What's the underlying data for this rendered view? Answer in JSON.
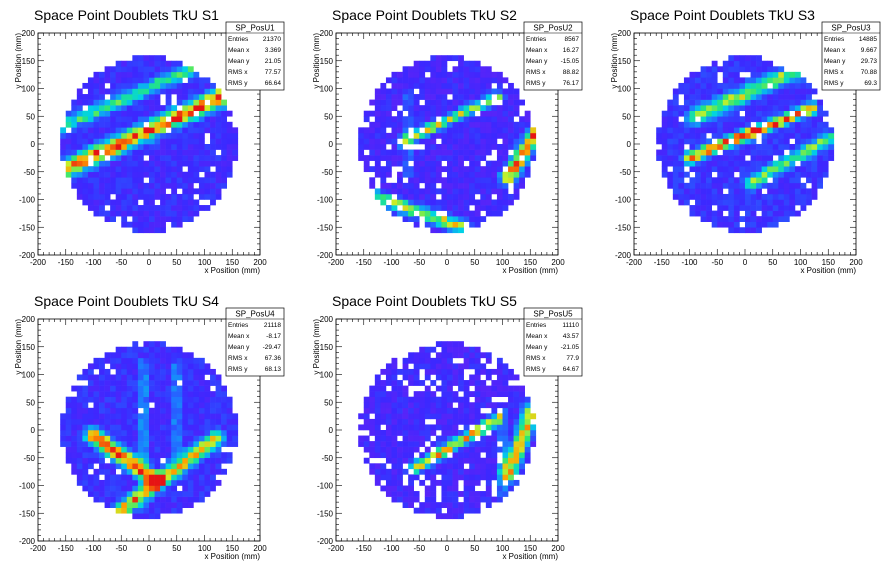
{
  "chart_data": [
    {
      "type": "heatmap",
      "title": "Space Point Doublets TkU S1",
      "xlabel": "x Position (mm)",
      "ylabel": "y Position (mm)",
      "xlim": [
        -200,
        200
      ],
      "ylim": [
        -200,
        200
      ],
      "xticks": [
        "-200",
        "-150",
        "-100",
        "-50",
        "0",
        "50",
        "100",
        "150",
        "200"
      ],
      "yticks": [
        "-200",
        "-150",
        "-100",
        "-50",
        "0",
        "50",
        "100",
        "150",
        "200"
      ],
      "stats": {
        "name": "SP_PosU1",
        "rows": [
          [
            "Entries",
            "21370"
          ],
          [
            "Mean x",
            "3.369"
          ],
          [
            "Mean y",
            "21.05"
          ],
          [
            "RMS x",
            "77.57"
          ],
          [
            "RMS y",
            "66.64"
          ]
        ]
      },
      "tracks": [
        {
          "x1": -150,
          "y1": -45,
          "x2": 150,
          "y2": 95,
          "w": 16,
          "peak": 0.85
        },
        {
          "x1": -160,
          "y1": 30,
          "x2": 120,
          "y2": 155,
          "w": 12,
          "peak": 0.45
        }
      ],
      "base": 0.12,
      "holes": 0.05,
      "seed": 11
    },
    {
      "type": "heatmap",
      "title": "Space Point Doublets TkU S2",
      "xlabel": "x Position (mm)",
      "ylabel": "y Position (mm)",
      "xlim": [
        -200,
        200
      ],
      "ylim": [
        -200,
        200
      ],
      "xticks": [
        "-200",
        "-150",
        "-100",
        "-50",
        "0",
        "50",
        "100",
        "150",
        "200"
      ],
      "yticks": [
        "-200",
        "-150",
        "-100",
        "-50",
        "0",
        "50",
        "100",
        "150",
        "200"
      ],
      "stats": {
        "name": "SP_PosU2",
        "rows": [
          [
            "Entries",
            "8567"
          ],
          [
            "Mean x",
            "16.27"
          ],
          [
            "Mean y",
            "-15.05"
          ],
          [
            "RMS x",
            "88.82"
          ],
          [
            "RMS y",
            "76.17"
          ]
        ]
      },
      "tracks": [
        {
          "x1": -80,
          "y1": 5,
          "x2": 90,
          "y2": 85,
          "w": 10,
          "peak": 0.6
        },
        {
          "x1": -130,
          "y1": -95,
          "x2": 30,
          "y2": -150,
          "w": 12,
          "peak": 0.6
        },
        {
          "x1": 110,
          "y1": -60,
          "x2": 160,
          "y2": 20,
          "w": 14,
          "peak": 0.8
        },
        {
          "x1": -70,
          "y1": -60,
          "x2": -70,
          "y2": 90,
          "w": 5,
          "peak": 0.35
        }
      ],
      "base": 0.1,
      "holes": 0.1,
      "seed": 23
    },
    {
      "type": "heatmap",
      "title": "Space Point Doublets TkU S3",
      "xlabel": "x Position (mm)",
      "ylabel": "y Position (mm)",
      "xlim": [
        -200,
        200
      ],
      "ylim": [
        -200,
        200
      ],
      "xticks": [
        "-200",
        "-150",
        "-100",
        "-50",
        "0",
        "50",
        "100",
        "150",
        "200"
      ],
      "yticks": [
        "-200",
        "-150",
        "-100",
        "-50",
        "0",
        "50",
        "100",
        "150",
        "200"
      ],
      "stats": {
        "name": "SP_PosU3",
        "rows": [
          [
            "Entries",
            "14885"
          ],
          [
            "Mean x",
            "9.667"
          ],
          [
            "Mean y",
            "29.73"
          ],
          [
            "RMS x",
            "70.88"
          ],
          [
            "RMS y",
            "69.3"
          ]
        ]
      },
      "tracks": [
        {
          "x1": -100,
          "y1": -25,
          "x2": 120,
          "y2": 65,
          "w": 10,
          "peak": 0.85
        },
        {
          "x1": -90,
          "y1": 50,
          "x2": 110,
          "y2": 140,
          "w": 14,
          "peak": 0.55
        },
        {
          "x1": 10,
          "y1": -70,
          "x2": 150,
          "y2": 10,
          "w": 12,
          "peak": 0.5
        }
      ],
      "base": 0.14,
      "holes": 0.06,
      "seed": 37
    },
    {
      "type": "heatmap",
      "title": "Space Point Doublets TkU S4",
      "xlabel": "x Position (mm)",
      "ylabel": "y Position (mm)",
      "xlim": [
        -200,
        200
      ],
      "ylim": [
        -200,
        200
      ],
      "xticks": [
        "-200",
        "-150",
        "-100",
        "-50",
        "0",
        "50",
        "100",
        "150",
        "200"
      ],
      "yticks": [
        "-200",
        "-150",
        "-100",
        "-50",
        "0",
        "50",
        "100",
        "150",
        "200"
      ],
      "stats": {
        "name": "SP_PosU4",
        "rows": [
          [
            "Entries",
            "21118"
          ],
          [
            "Mean x",
            "-8.17"
          ],
          [
            "Mean y",
            "-29.47"
          ],
          [
            "RMS x",
            "67.36"
          ],
          [
            "RMS y",
            "68.13"
          ]
        ]
      },
      "tracks": [
        {
          "x1": -100,
          "y1": -10,
          "x2": 10,
          "y2": -90,
          "w": 14,
          "peak": 0.9
        },
        {
          "x1": -50,
          "y1": -145,
          "x2": 120,
          "y2": -15,
          "w": 14,
          "peak": 0.7
        },
        {
          "x1": -10,
          "y1": -50,
          "x2": -10,
          "y2": 120,
          "w": 6,
          "peak": 0.35
        },
        {
          "x1": 50,
          "y1": -50,
          "x2": 50,
          "y2": 120,
          "w": 6,
          "peak": 0.3
        }
      ],
      "base": 0.13,
      "holes": 0.03,
      "seed": 51
    },
    {
      "type": "heatmap",
      "title": "Space Point Doublets TkU S5",
      "xlabel": "x Position (mm)",
      "ylabel": "y Position (mm)",
      "xlim": [
        -200,
        200
      ],
      "ylim": [
        -200,
        200
      ],
      "xticks": [
        "-200",
        "-150",
        "-100",
        "-50",
        "0",
        "50",
        "100",
        "150",
        "200"
      ],
      "yticks": [
        "-200",
        "-150",
        "-100",
        "-50",
        "0",
        "50",
        "100",
        "150",
        "200"
      ],
      "stats": {
        "name": "SP_PosU5",
        "rows": [
          [
            "Entries",
            "11110"
          ],
          [
            "Mean x",
            "43.57"
          ],
          [
            "Mean y",
            "-21.05"
          ],
          [
            "RMS x",
            "77.9"
          ],
          [
            "RMS y",
            "64.67"
          ]
        ]
      },
      "tracks": [
        {
          "x1": -60,
          "y1": -70,
          "x2": 90,
          "y2": 20,
          "w": 10,
          "peak": 0.75
        },
        {
          "x1": 110,
          "y1": -80,
          "x2": 155,
          "y2": 40,
          "w": 14,
          "peak": 0.75
        },
        {
          "x1": 100,
          "y1": -120,
          "x2": 100,
          "y2": 40,
          "w": 5,
          "peak": 0.45
        }
      ],
      "base": 0.1,
      "holes": 0.12,
      "seed": 67
    }
  ]
}
